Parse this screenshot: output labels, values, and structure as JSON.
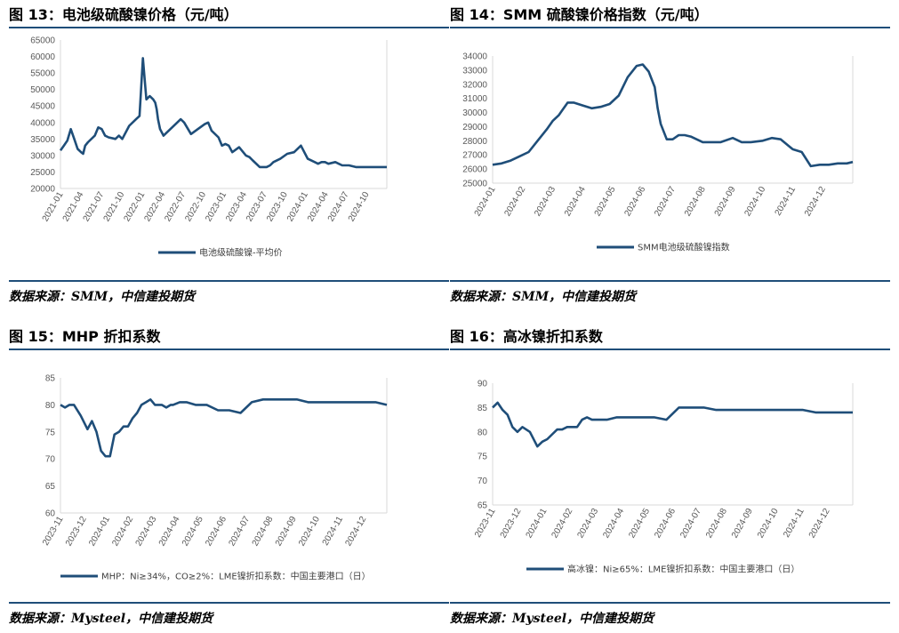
{
  "colors": {
    "line": "#1f4e79",
    "rule": "#1f4e79",
    "axis": "#d9d9d9",
    "tick_text": "#595959"
  },
  "panels": [
    {
      "title": "图 13：电池级硫酸镍价格（元/吨）",
      "source": "数据来源：SMM，中信建投期货",
      "chart_data": {
        "type": "line",
        "legend_position": "bottom",
        "grid": false,
        "ylim": [
          20000,
          65000
        ],
        "yticks": [
          20000,
          25000,
          30000,
          35000,
          40000,
          45000,
          50000,
          55000,
          60000,
          65000
        ],
        "xticks": [
          "2021-01",
          "2021-04",
          "2021-07",
          "2021-10",
          "2022-01",
          "2022-04",
          "2022-07",
          "2022-10",
          "2023-01",
          "2023-04",
          "2023-07",
          "2023-10",
          "2024-01",
          "2024-04",
          "2024-07",
          "2024-10"
        ],
        "xlim": [
          0,
          47.5
        ],
        "series": [
          {
            "name": "电池级硫酸镍-平均价",
            "x": [
              0,
              0.5,
              1,
              1.5,
              2,
              2.5,
              3,
              3.3,
              3.6,
              4,
              5,
              5.5,
              6,
              6.5,
              7,
              8,
              8.5,
              9,
              10,
              11,
              11.5,
              12,
              12.5,
              13,
              13.5,
              13.8,
              14,
              14.2,
              14.5,
              15,
              16,
              17,
              17.5,
              18,
              19,
              20,
              21,
              21.5,
              22,
              23,
              23.5,
              24,
              24.5,
              25,
              26,
              27,
              27.5,
              28,
              29,
              30,
              30.5,
              31,
              32,
              33,
              34,
              35,
              36,
              37,
              37.5,
              38,
              38.5,
              39,
              40,
              41,
              42,
              43,
              44,
              45,
              45.5,
              46,
              47,
              47.5
            ],
            "y": [
              31500,
              33000,
              34500,
              38000,
              35000,
              32000,
              31000,
              30500,
              33000,
              34000,
              36000,
              38500,
              38000,
              36000,
              35500,
              35000,
              36000,
              35000,
              39000,
              41000,
              42000,
              59500,
              47000,
              48000,
              47000,
              46000,
              44000,
              41000,
              38000,
              36000,
              38000,
              40000,
              41000,
              40000,
              36500,
              38000,
              39500,
              40000,
              37500,
              35500,
              33000,
              33500,
              33000,
              31000,
              32500,
              30000,
              29500,
              28500,
              26500,
              26500,
              27000,
              28000,
              29000,
              30500,
              31000,
              33000,
              29000,
              28000,
              27500,
              28000,
              28000,
              27500,
              28000,
              27000,
              27000,
              26500,
              26500,
              26500,
              26500,
              26500,
              26500,
              26500
            ]
          }
        ]
      }
    },
    {
      "title": "图 14：SMM 硫酸镍价格指数（元/吨）",
      "source": "数据来源：SMM，中信建投期货",
      "chart_data": {
        "type": "line",
        "legend_position": "bottom",
        "grid": false,
        "ylim": [
          25000,
          34000
        ],
        "yticks": [
          25000,
          26000,
          27000,
          28000,
          29000,
          30000,
          31000,
          32000,
          33000,
          34000
        ],
        "xticks": [
          "2024-01",
          "2024-02",
          "2024-03",
          "2024-04",
          "2024-05",
          "2024-06",
          "2024-07",
          "2024-08",
          "2024-09",
          "2024-10",
          "2024-11",
          "2024-12"
        ],
        "xlim": [
          0,
          12.0
        ],
        "series": [
          {
            "name": "SMM电池级硫酸镍指数",
            "x": [
              0,
              0.3,
              0.6,
              0.9,
              1.2,
              1.5,
              1.8,
              2.0,
              2.2,
              2.5,
              2.7,
              3.0,
              3.3,
              3.6,
              3.9,
              4.2,
              4.5,
              4.8,
              5.0,
              5.2,
              5.4,
              5.5,
              5.6,
              5.8,
              6.0,
              6.2,
              6.4,
              6.6,
              7.0,
              7.3,
              7.6,
              8.0,
              8.3,
              8.6,
              9.0,
              9.3,
              9.6,
              10.0,
              10.3,
              10.6,
              10.9,
              11.2,
              11.5,
              11.8,
              12.0
            ],
            "y": [
              26300,
              26400,
              26600,
              26900,
              27200,
              28000,
              28800,
              29400,
              29800,
              30700,
              30700,
              30500,
              30300,
              30400,
              30600,
              31200,
              32500,
              33300,
              33400,
              32900,
              31800,
              30300,
              29200,
              28100,
              28100,
              28400,
              28400,
              28300,
              27900,
              27900,
              27900,
              28200,
              27900,
              27900,
              28000,
              28200,
              28100,
              27400,
              27200,
              26200,
              26300,
              26300,
              26400,
              26400,
              26500
            ]
          }
        ]
      }
    },
    {
      "title": "图 15：MHP 折扣系数",
      "source": "数据来源：Mysteel，中信建投期货",
      "chart_data": {
        "type": "line",
        "legend_position": "bottom",
        "grid": false,
        "ylim": [
          60,
          85
        ],
        "yticks": [
          60,
          65,
          70,
          75,
          80,
          85
        ],
        "xticks": [
          "2023-11",
          "2023-12",
          "2024-01",
          "2024-02",
          "2024-03",
          "2024-04",
          "2024-05",
          "2024-06",
          "2024-07",
          "2024-08",
          "2024-09",
          "2024-10",
          "2024-11",
          "2024-12"
        ],
        "xlim": [
          0,
          14.5
        ],
        "series": [
          {
            "name": "MHP：Ni≥34%，CO≥2%：LME镍折扣系数：中国主要港口（日）",
            "x": [
              0,
              0.2,
              0.4,
              0.6,
              0.9,
              1.2,
              1.4,
              1.6,
              1.8,
              2.0,
              2.2,
              2.4,
              2.6,
              2.8,
              3.0,
              3.2,
              3.4,
              3.6,
              3.8,
              4.0,
              4.2,
              4.5,
              4.7,
              4.9,
              5.0,
              5.3,
              5.6,
              6.0,
              6.5,
              7.0,
              7.5,
              8.0,
              8.5,
              9.0,
              9.5,
              10.0,
              10.5,
              11.0,
              11.5,
              12.0,
              12.5,
              13.0,
              13.5,
              14.0,
              14.5
            ],
            "y": [
              80,
              79.5,
              80,
              80,
              78,
              75.5,
              77,
              75,
              71.5,
              70.5,
              70.5,
              74.5,
              75,
              76,
              76,
              77.5,
              78.5,
              80,
              80.5,
              81,
              80,
              80,
              79.5,
              80,
              80,
              80.5,
              80.5,
              80,
              80,
              79,
              79,
              78.5,
              80.5,
              81,
              81,
              81,
              81,
              80.5,
              80.5,
              80.5,
              80.5,
              80.5,
              80.5,
              80.5,
              80
            ]
          }
        ]
      }
    },
    {
      "title": "图 16：高冰镍折扣系数",
      "source": "数据来源：Mysteel，中信建投期货",
      "chart_data": {
        "type": "line",
        "legend_position": "bottom",
        "grid": false,
        "ylim": [
          65,
          90
        ],
        "yticks": [
          65,
          70,
          75,
          80,
          85,
          90
        ],
        "xticks": [
          "2023-11",
          "2023-12",
          "2024-01",
          "2024-02",
          "2024-03",
          "2024-04",
          "2024-05",
          "2024-06",
          "2024-07",
          "2024-08",
          "2024-09",
          "2024-10",
          "2024-11",
          "2024-12"
        ],
        "xlim": [
          0,
          14.5
        ],
        "series": [
          {
            "name": "高冰镍：Ni≥65%：LME镍折扣系数：中国主要港口（日）",
            "x": [
              0,
              0.2,
              0.4,
              0.6,
              0.8,
              1.0,
              1.2,
              1.5,
              1.8,
              2.0,
              2.2,
              2.4,
              2.6,
              2.8,
              3.0,
              3.2,
              3.4,
              3.6,
              3.8,
              4.0,
              4.3,
              4.6,
              5.0,
              5.5,
              6.0,
              6.5,
              7.0,
              7.5,
              8.0,
              8.5,
              9.0,
              9.5,
              10.0,
              10.5,
              11.0,
              11.5,
              12.0,
              12.5,
              13.0,
              13.5,
              14.0,
              14.5
            ],
            "y": [
              85,
              86,
              84.5,
              83.5,
              81,
              80,
              81,
              80,
              77,
              78,
              78.5,
              79.5,
              80.5,
              80.5,
              81,
              81,
              81,
              82.5,
              83,
              82.5,
              82.5,
              82.5,
              83,
              83,
              83,
              83,
              82.5,
              85,
              85,
              85,
              84.5,
              84.5,
              84.5,
              84.5,
              84.5,
              84.5,
              84.5,
              84.5,
              84,
              84,
              84,
              84
            ]
          }
        ]
      }
    }
  ]
}
